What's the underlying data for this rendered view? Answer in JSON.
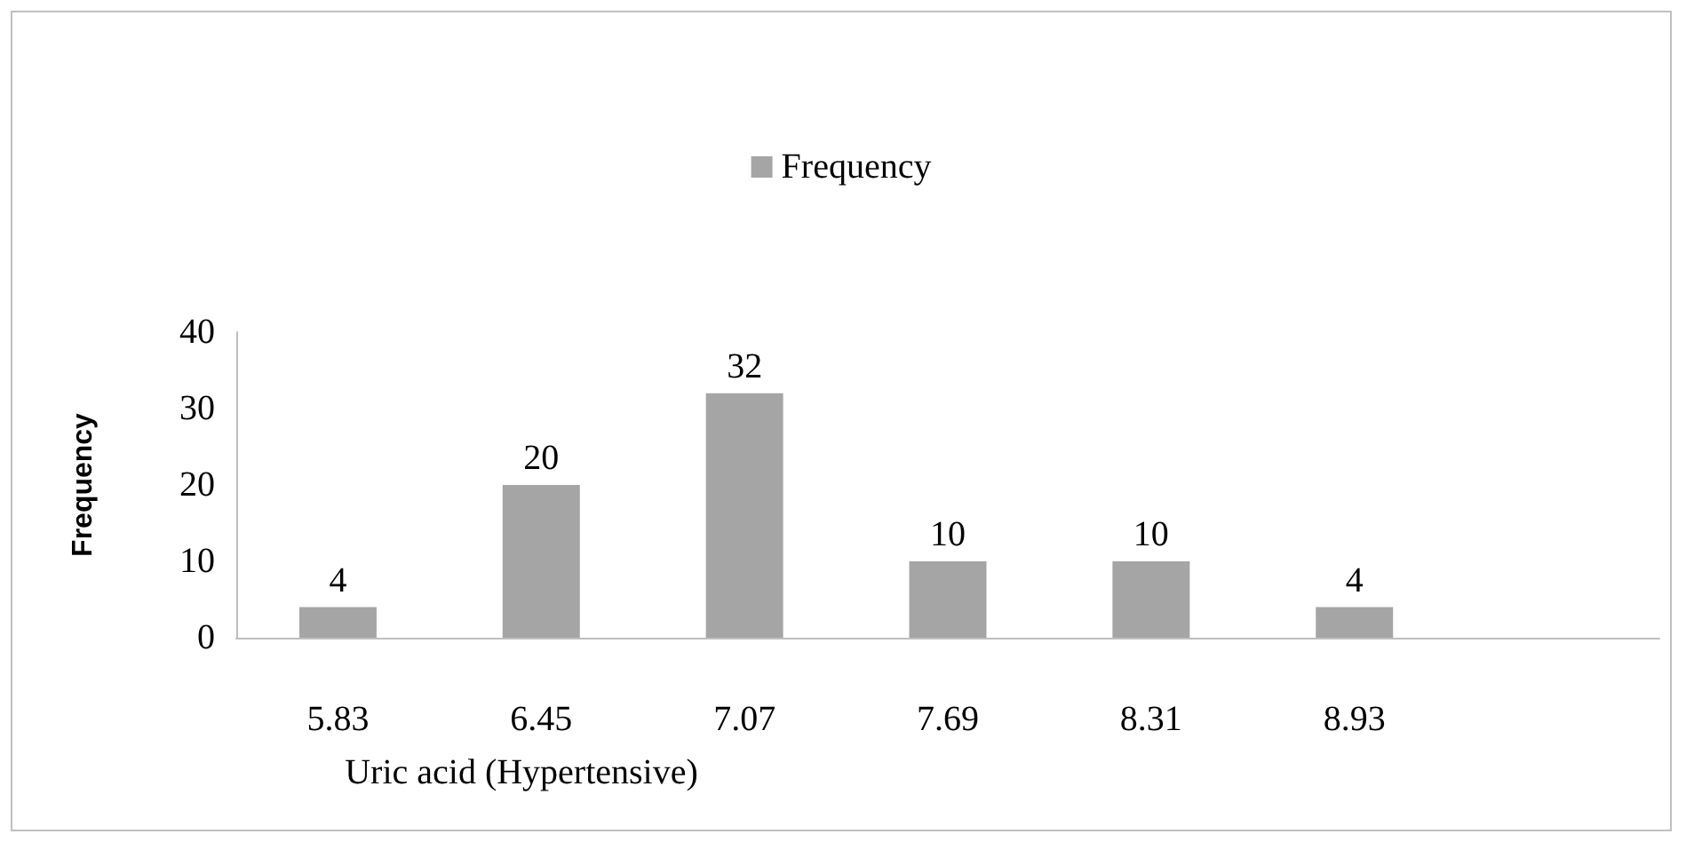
{
  "chart_data": {
    "type": "bar",
    "xlabel": "Uric acid (Hypertensive)",
    "ylabel": "Frequency",
    "categories": [
      "5.83",
      "6.45",
      "7.07",
      "7.69",
      "8.31",
      "8.93",
      null
    ],
    "series": [
      {
        "name": "Frequency",
        "color": "#a5a5a5",
        "values": [
          4,
          20,
          32,
          10,
          10,
          4,
          null
        ]
      }
    ],
    "ylim": [
      0,
      40
    ],
    "yticks": [
      0,
      10,
      20,
      30,
      40
    ],
    "data_labels": true,
    "legend": "top",
    "grid": false
  }
}
